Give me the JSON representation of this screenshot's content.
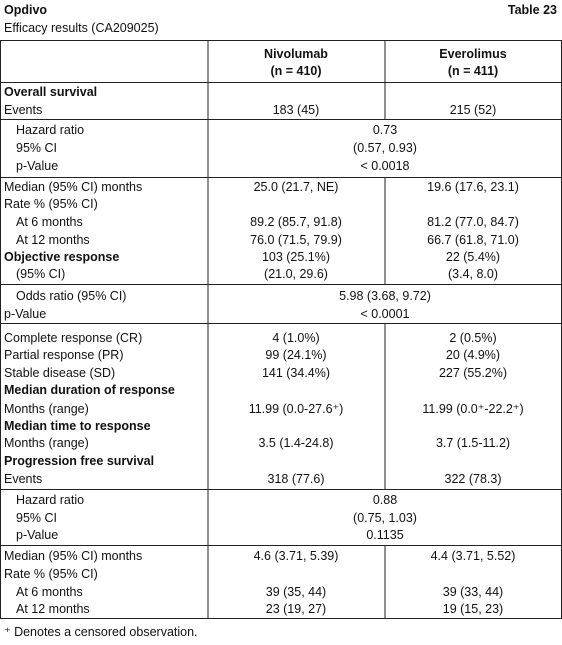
{
  "header": {
    "title": "Opdivo",
    "table_number": "Table 23",
    "subtitle": "Efficacy results (CA209025)"
  },
  "table": {
    "columns": [
      {
        "name": "Nivolumab",
        "n": "(n = 410)"
      },
      {
        "name": "Everolimus",
        "n": "(n = 411)"
      }
    ],
    "rows": [
      {
        "heading": "Overall survival"
      },
      {
        "label": "Events",
        "values": [
          "183 (45)",
          "215 (52)"
        ]
      },
      {
        "sublabel": "Hazard ratio",
        "value": "0.73"
      },
      {
        "sublabel": "95% CI",
        "value": "(0.57, 0.93)"
      },
      {
        "sublabel": "p-Value",
        "value": "< 0.0018"
      },
      {
        "label": "Median (95% CI) months",
        "values": [
          "25.0 (21.7, NE)",
          "19.6 (17.6, 23.1)"
        ]
      },
      {
        "label": "Rate % (95% CI)"
      },
      {
        "sublabel": "At 6 months",
        "values": [
          "89.2 (85.7, 91.8)",
          "81.2 (77.0, 84.7)"
        ]
      },
      {
        "sublabel": "At 12 months",
        "values": [
          "76.0 (71.5, 79.9)",
          "66.7 (61.8, 71.0)"
        ]
      },
      {
        "heading": "Objective response",
        "values": [
          "103 (25.1%)",
          "22 (5.4%)"
        ]
      },
      {
        "sublabel": "(95% CI)",
        "values": [
          "(21.0, 29.6)",
          "(3.4, 8.0)"
        ]
      },
      {
        "sublabel": "Odds ratio (95% CI)",
        "value": "5.98 (3.68, 9.72)"
      },
      {
        "label": "p-Value",
        "value": "< 0.0001"
      },
      {
        "label": "Complete response (CR)",
        "values": [
          "4 (1.0%)",
          "2 (0.5%)"
        ]
      },
      {
        "label": "Partial response (PR)",
        "values": [
          "99 (24.1%)",
          "20 (4.9%)"
        ]
      },
      {
        "label": "Stable disease (SD)",
        "values": [
          "141 (34.4%)",
          "227 (55.2%)"
        ]
      },
      {
        "heading": "Median duration of response"
      },
      {
        "label": "Months (range)",
        "values": [
          "11.99 (0.0-27.6⁺)",
          "11.99 (0.0⁺-22.2⁺)"
        ]
      },
      {
        "heading": "Median time to response"
      },
      {
        "label": "Months (range)",
        "values": [
          "3.5 (1.4-24.8)",
          "3.7 (1.5-11.2)"
        ]
      },
      {
        "heading": "Progression free survival"
      },
      {
        "label": "Events",
        "values": [
          "318 (77.6)",
          "322 (78.3)"
        ]
      },
      {
        "sublabel": "Hazard ratio",
        "value": "0.88"
      },
      {
        "sublabel": "95% CI",
        "value": "(0.75, 1.03)"
      },
      {
        "sublabel": "p-Value",
        "value": "0.1135"
      },
      {
        "label": "Median (95% CI) months",
        "values": [
          "4.6 (3.71, 5.39)",
          "4.4 (3.71, 5.52)"
        ]
      },
      {
        "label": "Rate % (95% CI)"
      },
      {
        "sublabel": "At 6 months",
        "values": [
          "39 (35, 44)",
          "39 (33, 44)"
        ]
      },
      {
        "sublabel": "At 12 months",
        "values": [
          "23 (19, 27)",
          "19 (15, 23)"
        ]
      }
    ]
  },
  "footnote": "⁺ Denotes a censored observation."
}
